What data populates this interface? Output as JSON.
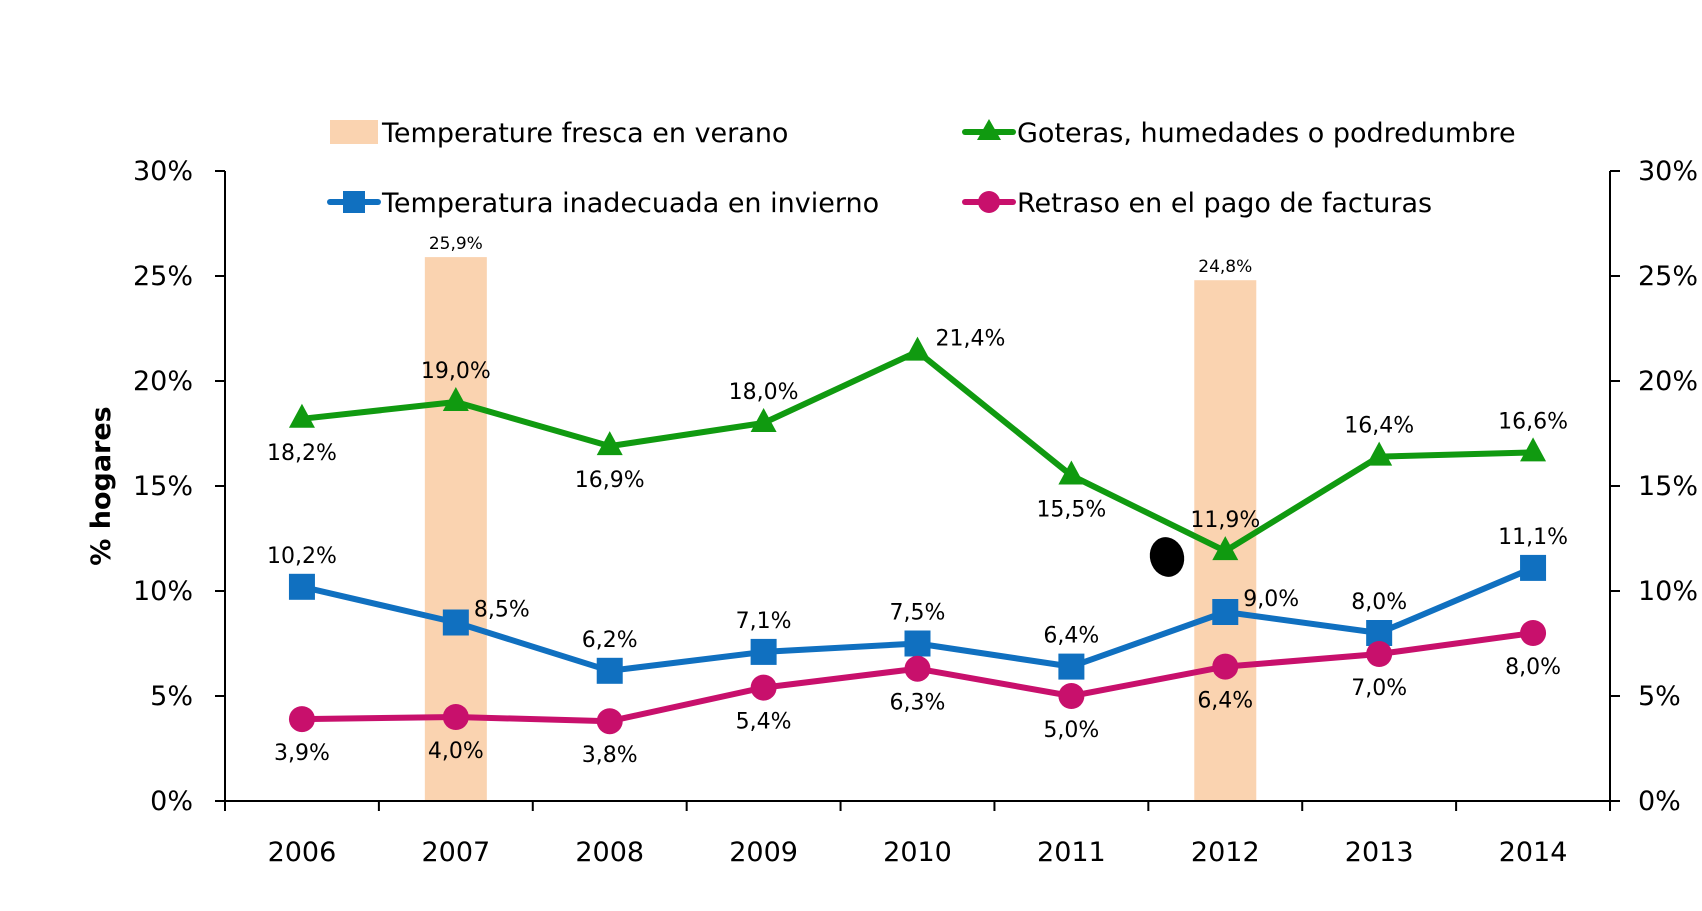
{
  "chart_data": {
    "type": "line",
    "title": "",
    "xlabel": "",
    "ylabel": "% hogares",
    "ylim": [
      0,
      30
    ],
    "y_ticks": [
      "0%",
      "5%",
      "10%",
      "15%",
      "20%",
      "25%",
      "30%"
    ],
    "y_tick_values": [
      0,
      5,
      10,
      15,
      20,
      25,
      30
    ],
    "secondary_y_ticks": [
      "0%",
      "5%",
      "10%",
      "15%",
      "20%",
      "25%",
      "30%"
    ],
    "categories": [
      "2006",
      "2007",
      "2008",
      "2009",
      "2010",
      "2011",
      "2012",
      "2013",
      "2014"
    ],
    "grid": false,
    "legend_position": "top",
    "bars": {
      "name": "Temperature fresca en verano",
      "color": "#FAD3B0",
      "type": "bar",
      "points": [
        {
          "category": "2007",
          "value": 25.9,
          "label": "25,9%"
        },
        {
          "category": "2012",
          "value": 24.8,
          "label": "24,8%"
        }
      ]
    },
    "series": [
      {
        "name": "Goteras, humedades o podredumbre",
        "color": "#109A10",
        "marker": "triangle",
        "values": [
          18.2,
          19.0,
          16.9,
          18.0,
          21.4,
          15.5,
          11.9,
          16.4,
          16.6
        ],
        "labels": [
          "18,2%",
          "19,0%",
          "16,9%",
          "18,0%",
          "21,4%",
          "15,5%",
          "11,9%",
          "16,4%",
          "16,6%"
        ],
        "label_pos": [
          "below",
          "above",
          "below",
          "above",
          "right",
          "below",
          "above",
          "above",
          "above"
        ]
      },
      {
        "name": "Temperatura inadecuada en invierno",
        "color": "#1070C0",
        "marker": "square",
        "values": [
          10.2,
          8.5,
          6.2,
          7.1,
          7.5,
          6.4,
          9.0,
          8.0,
          11.1
        ],
        "labels": [
          "10,2%",
          "8,5%",
          "6,2%",
          "7,1%",
          "7,5%",
          "6,4%",
          "9,0%",
          "8,0%",
          "11,1%"
        ],
        "label_pos": [
          "above",
          "right",
          "above",
          "above",
          "above",
          "above",
          "right",
          "above",
          "above"
        ]
      },
      {
        "name": "Retraso en el pago de facturas",
        "color": "#C8106C",
        "marker": "circle",
        "values": [
          3.9,
          4.0,
          3.8,
          5.4,
          6.3,
          5.0,
          6.4,
          7.0,
          8.0
        ],
        "labels": [
          "3,9%",
          "4,0%",
          "3,8%",
          "5,4%",
          "6,3%",
          "5,0%",
          "6,4%",
          "7,0%",
          "8,0%"
        ],
        "label_pos": [
          "below",
          "below",
          "below",
          "below",
          "below",
          "below",
          "below",
          "below",
          "below"
        ]
      }
    ]
  },
  "legend": {
    "items": [
      {
        "label": "Temperature fresca en verano",
        "kind": "bar",
        "color": "#FAD3B0"
      },
      {
        "label": "Goteras, humedades o podredumbre",
        "kind": "triangle",
        "color": "#109A10"
      },
      {
        "label": "Temperatura inadecuada en invierno",
        "kind": "square",
        "color": "#1070C0"
      },
      {
        "label": "Retraso en el pago de facturas",
        "kind": "circle",
        "color": "#C8106C"
      }
    ]
  },
  "annotation": {
    "stray_mark": "black-dot"
  }
}
